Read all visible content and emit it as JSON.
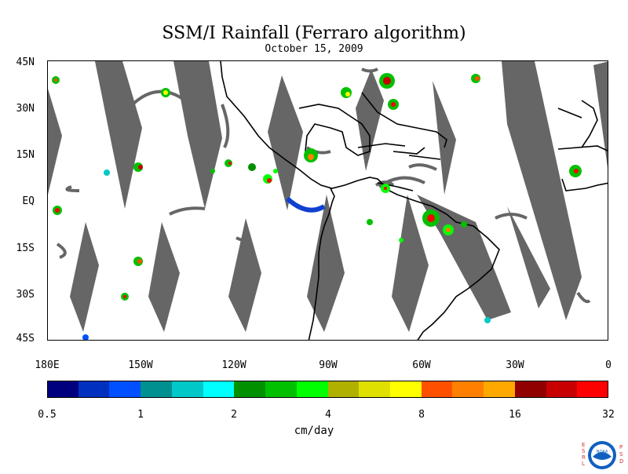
{
  "title": "SSM/I Rainfall (Ferraro algorithm)",
  "subtitle": "October 15, 2009",
  "lat_labels": [
    "45N",
    "30N",
    "15N",
    "EQ",
    "15S",
    "30S",
    "45S"
  ],
  "lon_labels": [
    "180E",
    "150W",
    "120W",
    "90W",
    "60W",
    "30W",
    "0"
  ],
  "colorbar": {
    "colors": [
      "#00007f",
      "#0030c0",
      "#0050ff",
      "#009090",
      "#00c8c8",
      "#00ffff",
      "#009000",
      "#00c000",
      "#00ff00",
      "#b0b000",
      "#e0e000",
      "#ffff00",
      "#ff5000",
      "#ff8000",
      "#ffa800",
      "#900000",
      "#c80000",
      "#ff0000"
    ],
    "labels": [
      "0.5",
      "1",
      "2",
      "4",
      "8",
      "16",
      "32"
    ],
    "units": "cm/day"
  },
  "logo": {
    "left_letters": [
      "E",
      "S",
      "R",
      "L"
    ],
    "right_letters": [
      "P",
      "S",
      "D"
    ],
    "center": "NOAA"
  },
  "swath_color": "#666666",
  "coast_color": "#000000"
}
